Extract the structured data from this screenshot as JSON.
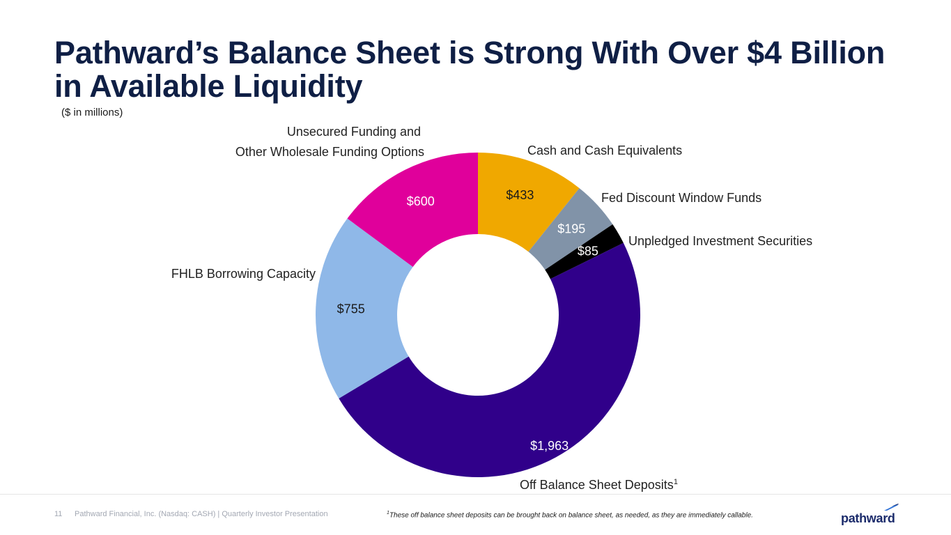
{
  "title": "Pathward’s Balance Sheet is Strong With Over $4 Billion in Available Liquidity",
  "subtitle": "($ in millions)",
  "chart_data": {
    "type": "pie",
    "style": "donut",
    "units": "$ in millions",
    "slices": [
      {
        "label": "Cash and Cash Equivalents",
        "value": 433,
        "value_label": "$433",
        "color": "#f0a800",
        "text_color": "#1a1a1a"
      },
      {
        "label": "Fed Discount Window Funds",
        "value": 195,
        "value_label": "$195",
        "color": "#8193a8",
        "text_color": "#ffffff"
      },
      {
        "label": "Unpledged Investment Securities",
        "value": 85,
        "value_label": "$85",
        "color": "#000000",
        "text_color": "#ffffff"
      },
      {
        "label": "Off Balance Sheet Deposits",
        "label_sup": "1",
        "value": 1963,
        "value_label": "$1,963",
        "color": "#30008a",
        "text_color": "#ffffff"
      },
      {
        "label": "FHLB Borrowing Capacity",
        "value": 755,
        "value_label": "$755",
        "color": "#8fb8e8",
        "text_color": "#1a1a1a"
      },
      {
        "label": "Unsecured Funding and",
        "label_line2": "Other Wholesale Funding Options",
        "value": 600,
        "value_label": "$600",
        "color": "#e0009b",
        "text_color": "#ffffff"
      }
    ]
  },
  "footer": {
    "page_number": "11",
    "company_line": "Pathward Financial, Inc. (Nasdaq: CASH) | Quarterly Investor Presentation",
    "footnote_marker": "1",
    "footnote": "These off balance sheet deposits can be brought back on balance sheet, as needed, as they are immediately callable.",
    "logo_text": "pathward",
    "logo_colors": [
      "#1b2b6b",
      "#2b6fd6"
    ]
  }
}
